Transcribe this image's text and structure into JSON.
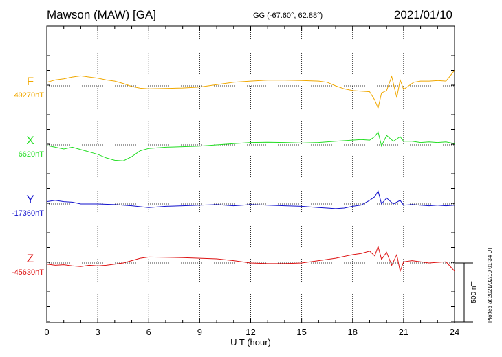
{
  "header": {
    "station": "Mawson (MAW)  [GA]",
    "coords": "GG (-67.60°,  62.88°)",
    "date": "2021/01/10"
  },
  "plotted_note": "Plotted at 2021/02/10 01:34  UT",
  "colors": {
    "F": "#f0a800",
    "X": "#22dd22",
    "Y": "#1010cc",
    "Z": "#dd1111"
  },
  "chart_data": {
    "type": "line",
    "title": "",
    "xlabel": "U T (hour)",
    "ylabel": "",
    "xlim": [
      0,
      24
    ],
    "x_ticks": [
      "0",
      "3",
      "6",
      "9",
      "12",
      "15",
      "18",
      "21",
      "24"
    ],
    "grid": true,
    "scale_bar": {
      "label": "500 nT",
      "value_nT": 500
    },
    "series": [
      {
        "name": "F",
        "baseline_label": "49270nT",
        "baseline_nT": 49270,
        "color": "#f0a800",
        "points": [
          [
            0,
            49300
          ],
          [
            0.5,
            49320
          ],
          [
            1,
            49330
          ],
          [
            1.5,
            49345
          ],
          [
            2,
            49355
          ],
          [
            2.5,
            49345
          ],
          [
            3,
            49335
          ],
          [
            3.5,
            49320
          ],
          [
            4,
            49310
          ],
          [
            4.5,
            49290
          ],
          [
            5,
            49265
          ],
          [
            5.5,
            49250
          ],
          [
            6,
            49245
          ],
          [
            7,
            49248
          ],
          [
            8,
            49252
          ],
          [
            9,
            49260
          ],
          [
            10,
            49280
          ],
          [
            11,
            49300
          ],
          [
            12,
            49310
          ],
          [
            13,
            49318
          ],
          [
            14,
            49318
          ],
          [
            15,
            49315
          ],
          [
            16,
            49310
          ],
          [
            16.5,
            49300
          ],
          [
            17,
            49270
          ],
          [
            17.5,
            49245
          ],
          [
            18,
            49230
          ],
          [
            18.5,
            49225
          ],
          [
            19,
            49220
          ],
          [
            19.3,
            49150
          ],
          [
            19.5,
            49080
          ],
          [
            19.7,
            49210
          ],
          [
            20,
            49230
          ],
          [
            20.3,
            49350
          ],
          [
            20.6,
            49170
          ],
          [
            20.8,
            49320
          ],
          [
            21,
            49240
          ],
          [
            21.3,
            49270
          ],
          [
            21.6,
            49300
          ],
          [
            22,
            49310
          ],
          [
            22.5,
            49310
          ],
          [
            23,
            49315
          ],
          [
            23.5,
            49310
          ],
          [
            24,
            49400
          ]
        ]
      },
      {
        "name": "X",
        "baseline_label": "6620nT",
        "baseline_nT": 6620,
        "color": "#22dd22",
        "points": [
          [
            0,
            6615
          ],
          [
            0.5,
            6600
          ],
          [
            1,
            6585
          ],
          [
            1.5,
            6600
          ],
          [
            2,
            6580
          ],
          [
            2.5,
            6560
          ],
          [
            3,
            6540
          ],
          [
            3.5,
            6510
          ],
          [
            4,
            6490
          ],
          [
            4.5,
            6485
          ],
          [
            5,
            6520
          ],
          [
            5.5,
            6570
          ],
          [
            6,
            6590
          ],
          [
            7,
            6600
          ],
          [
            8,
            6605
          ],
          [
            9,
            6610
          ],
          [
            10,
            6620
          ],
          [
            11,
            6630
          ],
          [
            12,
            6640
          ],
          [
            13,
            6642
          ],
          [
            14,
            6640
          ],
          [
            15,
            6635
          ],
          [
            16,
            6640
          ],
          [
            17,
            6650
          ],
          [
            18,
            6660
          ],
          [
            18.5,
            6665
          ],
          [
            19,
            6660
          ],
          [
            19.3,
            6690
          ],
          [
            19.5,
            6730
          ],
          [
            19.7,
            6610
          ],
          [
            20,
            6700
          ],
          [
            20.4,
            6650
          ],
          [
            20.8,
            6690
          ],
          [
            21,
            6650
          ],
          [
            21.5,
            6650
          ],
          [
            22,
            6640
          ],
          [
            22.5,
            6645
          ],
          [
            23,
            6640
          ],
          [
            23.5,
            6645
          ],
          [
            24,
            6630
          ]
        ]
      },
      {
        "name": "Y",
        "baseline_label": "-17360nT",
        "baseline_nT": -17360,
        "color": "#1010cc",
        "points": [
          [
            0,
            -17340
          ],
          [
            0.5,
            -17330
          ],
          [
            1,
            -17340
          ],
          [
            1.5,
            -17345
          ],
          [
            2,
            -17360
          ],
          [
            3,
            -17360
          ],
          [
            4,
            -17365
          ],
          [
            5,
            -17375
          ],
          [
            6,
            -17390
          ],
          [
            7,
            -17380
          ],
          [
            8,
            -17375
          ],
          [
            9,
            -17370
          ],
          [
            10,
            -17365
          ],
          [
            11,
            -17375
          ],
          [
            12,
            -17365
          ],
          [
            13,
            -17370
          ],
          [
            14,
            -17375
          ],
          [
            15,
            -17380
          ],
          [
            16,
            -17390
          ],
          [
            16.5,
            -17395
          ],
          [
            17,
            -17400
          ],
          [
            17.5,
            -17395
          ],
          [
            18,
            -17380
          ],
          [
            18.5,
            -17370
          ],
          [
            19,
            -17330
          ],
          [
            19.3,
            -17300
          ],
          [
            19.5,
            -17250
          ],
          [
            19.7,
            -17360
          ],
          [
            20,
            -17310
          ],
          [
            20.4,
            -17360
          ],
          [
            20.8,
            -17330
          ],
          [
            21,
            -17370
          ],
          [
            21.5,
            -17365
          ],
          [
            22,
            -17370
          ],
          [
            22.5,
            -17375
          ],
          [
            23,
            -17370
          ],
          [
            23.5,
            -17375
          ],
          [
            24,
            -17370
          ]
        ]
      },
      {
        "name": "Z",
        "baseline_label": "-45630nT",
        "baseline_nT": -45630,
        "color": "#dd1111",
        "points": [
          [
            0,
            -45640
          ],
          [
            0.5,
            -45650
          ],
          [
            1,
            -45645
          ],
          [
            1.5,
            -45655
          ],
          [
            2,
            -45660
          ],
          [
            2.5,
            -45650
          ],
          [
            3,
            -45655
          ],
          [
            3.5,
            -45650
          ],
          [
            4,
            -45640
          ],
          [
            4.5,
            -45630
          ],
          [
            5,
            -45610
          ],
          [
            5.5,
            -45590
          ],
          [
            6,
            -45580
          ],
          [
            7,
            -45582
          ],
          [
            8,
            -45585
          ],
          [
            9,
            -45590
          ],
          [
            10,
            -45595
          ],
          [
            11,
            -45610
          ],
          [
            12,
            -45630
          ],
          [
            13,
            -45635
          ],
          [
            14,
            -45635
          ],
          [
            15,
            -45630
          ],
          [
            16,
            -45610
          ],
          [
            17,
            -45590
          ],
          [
            18,
            -45560
          ],
          [
            18.5,
            -45550
          ],
          [
            19,
            -45530
          ],
          [
            19.3,
            -45570
          ],
          [
            19.5,
            -45490
          ],
          [
            19.7,
            -45600
          ],
          [
            20,
            -45540
          ],
          [
            20.3,
            -45650
          ],
          [
            20.6,
            -45560
          ],
          [
            20.8,
            -45700
          ],
          [
            21,
            -45620
          ],
          [
            21.5,
            -45610
          ],
          [
            22,
            -45620
          ],
          [
            22.5,
            -45630
          ],
          [
            23,
            -45625
          ],
          [
            23.5,
            -45620
          ],
          [
            24,
            -45700
          ]
        ]
      }
    ]
  }
}
